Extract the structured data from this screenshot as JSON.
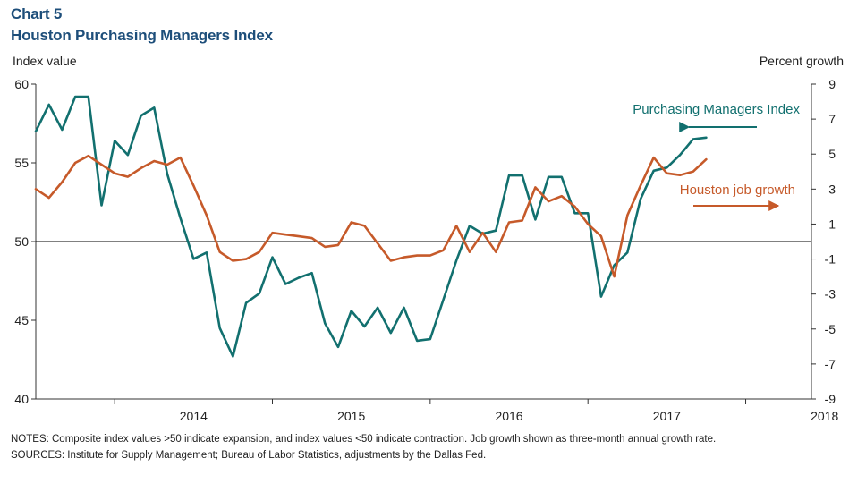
{
  "header": {
    "chart_number": "Chart 5",
    "title": "Houston Purchasing Managers Index"
  },
  "footer": {
    "notes": "NOTES: Composite index values  >50 indicate expansion, and index values  <50 indicate contraction. Job growth shown as three-month  annual growth rate.",
    "sources": "SOURCES: Institute for Supply Management;  Bureau of Labor Statistics, adjustments by the Dallas Fed."
  },
  "colors": {
    "title": "#1d4e7a",
    "pmi": "#12706f",
    "jobs": "#c65a2a",
    "axis": "#333333"
  },
  "chart_data": {
    "type": "line",
    "ylabel_left": "Index value",
    "ylabel_right": "Percent growth",
    "y_left": {
      "lim": [
        40,
        60
      ],
      "ticks": [
        "40",
        "45",
        "50",
        "55",
        "60"
      ],
      "reference_line": 50
    },
    "y_right": {
      "lim": [
        -9,
        9
      ],
      "ticks": [
        "-9",
        "-7",
        "-5",
        "-3",
        "-1",
        "1",
        "3",
        "5",
        "7",
        "9"
      ]
    },
    "x": {
      "lim": [
        "2013-07",
        "2018-06"
      ],
      "tick_labels": [
        "2014",
        "2015",
        "2016",
        "2017",
        "2018"
      ]
    },
    "grid": false,
    "legend": "inline annotations with arrows",
    "series": [
      {
        "name": "Purchasing Managers Index",
        "axis": "left",
        "annotation": "Purchasing Managers Index",
        "points": [
          [
            "2013-07",
            57.0
          ],
          [
            "2013-08",
            58.7
          ],
          [
            "2013-09",
            57.1
          ],
          [
            "2013-10",
            59.2
          ],
          [
            "2013-11",
            59.2
          ],
          [
            "2013-12",
            52.3
          ],
          [
            "2014-01",
            56.4
          ],
          [
            "2014-02",
            55.5
          ],
          [
            "2014-03",
            58.0
          ],
          [
            "2014-04",
            58.5
          ],
          [
            "2014-05",
            54.3
          ],
          [
            "2014-06",
            51.5
          ],
          [
            "2014-07",
            48.9
          ],
          [
            "2014-08",
            49.3
          ],
          [
            "2014-09",
            44.5
          ],
          [
            "2014-10",
            42.7
          ],
          [
            "2014-11",
            46.1
          ],
          [
            "2014-12",
            46.7
          ],
          [
            "2015-01",
            49.0
          ],
          [
            "2015-02",
            47.3
          ],
          [
            "2015-03",
            47.7
          ],
          [
            "2015-04",
            48.0
          ],
          [
            "2015-05",
            44.8
          ],
          [
            "2015-06",
            43.3
          ],
          [
            "2015-07",
            45.6
          ],
          [
            "2015-08",
            44.6
          ],
          [
            "2015-09",
            45.8
          ],
          [
            "2015-10",
            44.2
          ],
          [
            "2015-11",
            45.8
          ],
          [
            "2015-12",
            43.7
          ],
          [
            "2016-01",
            43.8
          ],
          [
            "2016-02",
            46.3
          ],
          [
            "2016-03",
            48.8
          ],
          [
            "2016-04",
            51.0
          ],
          [
            "2016-05",
            50.5
          ],
          [
            "2016-06",
            50.7
          ],
          [
            "2016-07",
            54.2
          ],
          [
            "2016-08",
            54.2
          ],
          [
            "2016-09",
            51.4
          ],
          [
            "2016-10",
            54.1
          ],
          [
            "2016-11",
            54.1
          ],
          [
            "2016-12",
            51.8
          ],
          [
            "2017-01",
            51.8
          ],
          [
            "2017-02",
            46.5
          ],
          [
            "2017-03",
            48.5
          ],
          [
            "2017-04",
            49.3
          ],
          [
            "2017-05",
            52.7
          ],
          [
            "2017-06",
            54.5
          ],
          [
            "2017-07",
            54.7
          ],
          [
            "2017-08",
            55.5
          ],
          [
            "2017-09",
            56.5
          ],
          [
            "2017-10",
            56.6
          ]
        ]
      },
      {
        "name": "Houston job growth",
        "axis": "right",
        "annotation": "Houston job growth",
        "points": [
          [
            "2013-07",
            3.0
          ],
          [
            "2013-08",
            2.5
          ],
          [
            "2013-09",
            3.4
          ],
          [
            "2013-10",
            4.5
          ],
          [
            "2013-11",
            4.9
          ],
          [
            "2013-12",
            4.4
          ],
          [
            "2014-01",
            3.9
          ],
          [
            "2014-02",
            3.7
          ],
          [
            "2014-03",
            4.2
          ],
          [
            "2014-04",
            4.6
          ],
          [
            "2014-05",
            4.4
          ],
          [
            "2014-06",
            4.8
          ],
          [
            "2014-07",
            3.2
          ],
          [
            "2014-08",
            1.5
          ],
          [
            "2014-09",
            -0.6
          ],
          [
            "2014-10",
            -1.1
          ],
          [
            "2014-11",
            -1.0
          ],
          [
            "2014-12",
            -0.6
          ],
          [
            "2015-01",
            0.5
          ],
          [
            "2015-02",
            0.4
          ],
          [
            "2015-03",
            0.3
          ],
          [
            "2015-04",
            0.2
          ],
          [
            "2015-05",
            -0.3
          ],
          [
            "2015-06",
            -0.2
          ],
          [
            "2015-07",
            1.1
          ],
          [
            "2015-08",
            0.9
          ],
          [
            "2015-09",
            -0.1
          ],
          [
            "2015-10",
            -1.1
          ],
          [
            "2015-11",
            -0.9
          ],
          [
            "2015-12",
            -0.8
          ],
          [
            "2016-01",
            -0.8
          ],
          [
            "2016-02",
            -0.5
          ],
          [
            "2016-03",
            0.9
          ],
          [
            "2016-04",
            -0.6
          ],
          [
            "2016-05",
            0.5
          ],
          [
            "2016-06",
            -0.6
          ],
          [
            "2016-07",
            1.1
          ],
          [
            "2016-08",
            1.2
          ],
          [
            "2016-09",
            3.1
          ],
          [
            "2016-10",
            2.3
          ],
          [
            "2016-11",
            2.6
          ],
          [
            "2016-12",
            2.0
          ],
          [
            "2017-01",
            1.0
          ],
          [
            "2017-02",
            0.3
          ],
          [
            "2017-03",
            -2.0
          ],
          [
            "2017-04",
            1.5
          ],
          [
            "2017-05",
            3.2
          ],
          [
            "2017-06",
            4.8
          ],
          [
            "2017-07",
            3.9
          ],
          [
            "2017-08",
            3.8
          ],
          [
            "2017-09",
            4.0
          ],
          [
            "2017-10",
            4.7
          ]
        ]
      }
    ]
  }
}
